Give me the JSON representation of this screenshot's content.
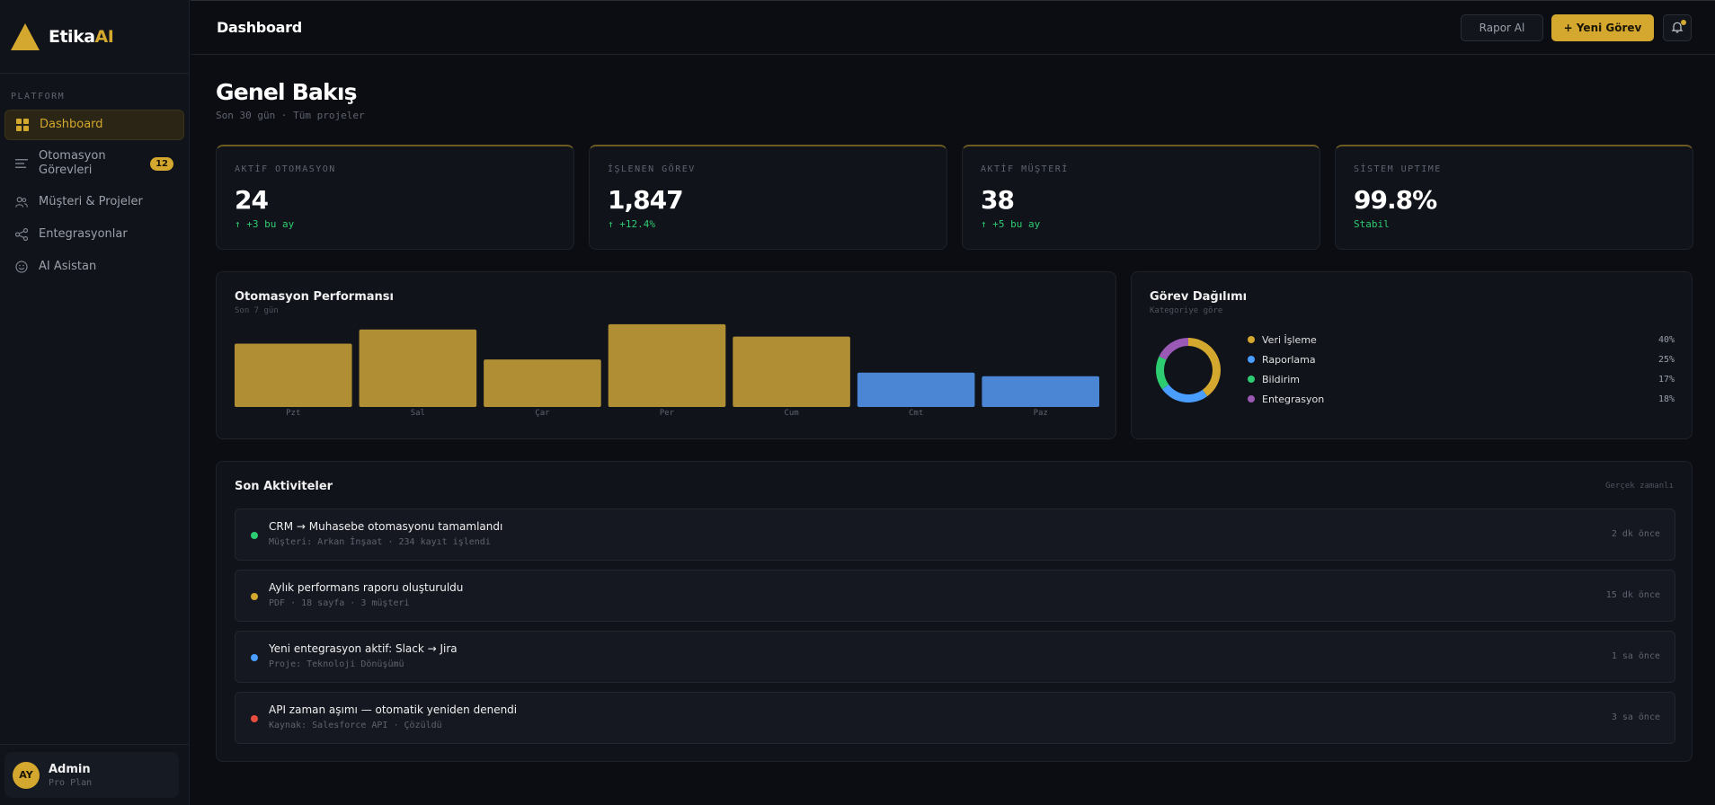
{
  "brand": {
    "name": "Etika",
    "accent": "AI"
  },
  "sidebar": {
    "section_label": "PLATFORM",
    "items": [
      {
        "label": "Dashboard",
        "icon": "grid-icon"
      },
      {
        "label": "Otomasyon Görevleri",
        "icon": "list-icon",
        "badge": "12"
      },
      {
        "label": "Müşteri & Projeler",
        "icon": "users-icon"
      },
      {
        "label": "Entegrasyonlar",
        "icon": "share-icon"
      },
      {
        "label": "AI Asistan",
        "icon": "smile-icon"
      }
    ]
  },
  "user": {
    "initials": "AY",
    "name": "Admin",
    "plan": "Pro Plan"
  },
  "topbar": {
    "title": "Dashboard",
    "report_button": "Rapor Al",
    "new_task_button": "+ Yeni Görev"
  },
  "page": {
    "title": "Genel Bakış",
    "subtitle": "Son 30 gün · Tüm projeler"
  },
  "kpis": [
    {
      "label": "AKTİF OTOMASYON",
      "value": "24",
      "delta": "↑ +3 bu ay"
    },
    {
      "label": "İŞLENEN GÖREV",
      "value": "1,847",
      "delta": "↑ +12.4%"
    },
    {
      "label": "AKTİF MÜŞTERİ",
      "value": "38",
      "delta": "↑ +5 bu ay"
    },
    {
      "label": "SİSTEM UPTIME",
      "value": "99.8%",
      "delta": "Stabil"
    }
  ],
  "performance": {
    "title": "Otomasyon Performansı",
    "subtitle": "Son 7 gün"
  },
  "distribution": {
    "title": "Görev Dağılımı",
    "subtitle": "Kategoriye göre"
  },
  "activities": {
    "title": "Son Aktiviteler",
    "realtime_label": "Gerçek zamanlı",
    "items": [
      {
        "title": "CRM → Muhasebe otomasyonu tamamlandı",
        "sub": "Müşteri: Arkan İnşaat · 234 kayıt işlendi",
        "time": "2 dk önce",
        "color": "#2ecc71"
      },
      {
        "title": "Aylık performans raporu oluşturuldu",
        "sub": "PDF · 18 sayfa · 3 müşteri",
        "time": "15 dk önce",
        "color": "#d4a82e"
      },
      {
        "title": "Yeni entegrasyon aktif: Slack → Jira",
        "sub": "Proje: Teknoloji Dönüşümü",
        "time": "1 sa önce",
        "color": "#4a9eff"
      },
      {
        "title": "API zaman aşımı — otomatik yeniden denendi",
        "sub": "Kaynak: Salesforce API · Çözüldü",
        "time": "3 sa önce",
        "color": "#e74c3c"
      }
    ]
  },
  "colors": {
    "gold": "#d4a82e",
    "bar_gold": "#b08f34",
    "bar_blue": "#4a86d4",
    "green": "#2ecc71",
    "blue": "#4a9eff",
    "purple": "#9b59b6",
    "red": "#e74c3c"
  },
  "chart_data": [
    {
      "type": "bar",
      "title": "Otomasyon Performansı",
      "subtitle": "Son 7 gün",
      "categories": [
        "Pzt",
        "Sal",
        "Çar",
        "Per",
        "Cum",
        "Cmt",
        "Paz"
      ],
      "values": [
        72,
        88,
        54,
        94,
        80,
        39,
        35
      ],
      "colors": [
        "#b08f34",
        "#b08f34",
        "#b08f34",
        "#b08f34",
        "#b08f34",
        "#4a86d4",
        "#4a86d4"
      ],
      "ylim": [
        0,
        100
      ]
    },
    {
      "type": "pie",
      "title": "Görev Dağılımı",
      "subtitle": "Kategoriye göre",
      "labels": [
        "Veri İşleme",
        "Raporlama",
        "Bildirim",
        "Entegrasyon"
      ],
      "values": [
        40,
        25,
        17,
        18
      ],
      "value_labels": [
        "40%",
        "25%",
        "17%",
        "18%"
      ],
      "colors": [
        "#d4a82e",
        "#4a9eff",
        "#2ecc71",
        "#9b59b6"
      ]
    }
  ]
}
